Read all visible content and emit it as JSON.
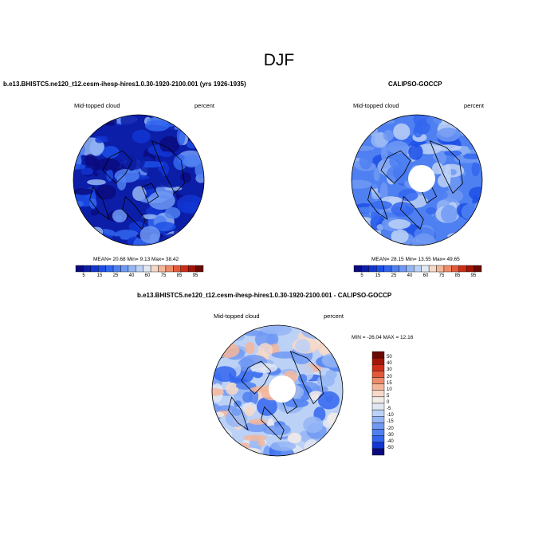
{
  "figure": {
    "title": "DJF",
    "colors": {
      "land_outline": "#000000",
      "background": "#ffffff"
    }
  },
  "chart_data": [
    {
      "type": "heatmap",
      "projection": "polar-stereographic-north",
      "title": "b.e13.BHISTC5.ne120_t12.cesm-ihesp-hires1.0.30-1920-2100.001 (yrs 1926-1935)",
      "left_label": "Mid-topped cloud",
      "right_label": "percent",
      "stats": "MEAN=  20.68  Min=   9.13  Max=  38.42",
      "mean": 20.68,
      "min": 9.13,
      "max": 38.42,
      "colorbar": {
        "orientation": "horizontal",
        "tick_labels": [
          "5",
          "15",
          "25",
          "40",
          "60",
          "75",
          "85",
          "95"
        ],
        "levels": [
          5,
          10,
          15,
          20,
          25,
          30,
          40,
          50,
          60,
          70,
          75,
          80,
          85,
          90,
          95
        ],
        "colors": [
          "#0a0a7e",
          "#0c1ea8",
          "#1236d2",
          "#1c4fe6",
          "#3366ee",
          "#4f80f1",
          "#7099f3",
          "#95b6f5",
          "#bcd1f6",
          "#e2e8f2",
          "#f6d8c8",
          "#f4b69b",
          "#ee8b68",
          "#e45a39",
          "#cf2d18",
          "#a21508",
          "#6b0a04"
        ]
      },
      "polar_hole": false
    },
    {
      "type": "heatmap",
      "projection": "polar-stereographic-north",
      "title": "CALIPSO-GOCCP",
      "left_label": "Mid-topped cloud",
      "right_label": "percent",
      "stats": "MEAN=  28.15  Min=  13.55  Max=  49.65",
      "mean": 28.15,
      "min": 13.55,
      "max": 49.65,
      "colorbar": {
        "orientation": "horizontal",
        "tick_labels": [
          "5",
          "15",
          "25",
          "40",
          "60",
          "75",
          "85",
          "95"
        ],
        "levels": [
          5,
          10,
          15,
          20,
          25,
          30,
          40,
          50,
          60,
          70,
          75,
          80,
          85,
          90,
          95
        ],
        "colors": [
          "#0a0a7e",
          "#0c1ea8",
          "#1236d2",
          "#1c4fe6",
          "#3366ee",
          "#4f80f1",
          "#7099f3",
          "#95b6f5",
          "#bcd1f6",
          "#e2e8f2",
          "#f6d8c8",
          "#f4b69b",
          "#ee8b68",
          "#e45a39",
          "#cf2d18",
          "#a21508",
          "#6b0a04"
        ]
      },
      "polar_hole": true
    },
    {
      "type": "heatmap",
      "projection": "polar-stereographic-north",
      "title": "b.e13.BHISTC5.ne120_t12.cesm-ihesp-hires1.0.30-1920-2100.001 - CALIPSO-GOCCP",
      "left_label": "Mid-topped cloud",
      "right_label": "percent",
      "stats": "MIN = -26.04 MAX =  12.16",
      "min": -26.04,
      "max": 12.16,
      "colorbar": {
        "orientation": "vertical",
        "tick_labels": [
          "50",
          "40",
          "30",
          "20",
          "15",
          "10",
          "5",
          "0",
          "-5",
          "-10",
          "-15",
          "-20",
          "-30",
          "-40",
          "-50"
        ],
        "levels": [
          50,
          40,
          30,
          20,
          15,
          10,
          5,
          0,
          -5,
          -10,
          -15,
          -20,
          -30,
          -40,
          -50
        ],
        "colors": [
          "#6b0a04",
          "#a21508",
          "#cf2d18",
          "#e45a39",
          "#ee8b68",
          "#f4b69b",
          "#f6d8c8",
          "#f2ece8",
          "#e2e8f2",
          "#bcd1f6",
          "#95b6f5",
          "#7099f3",
          "#4f80f1",
          "#3366ee",
          "#1236d2",
          "#0a0a7e"
        ]
      },
      "polar_hole": true
    }
  ]
}
